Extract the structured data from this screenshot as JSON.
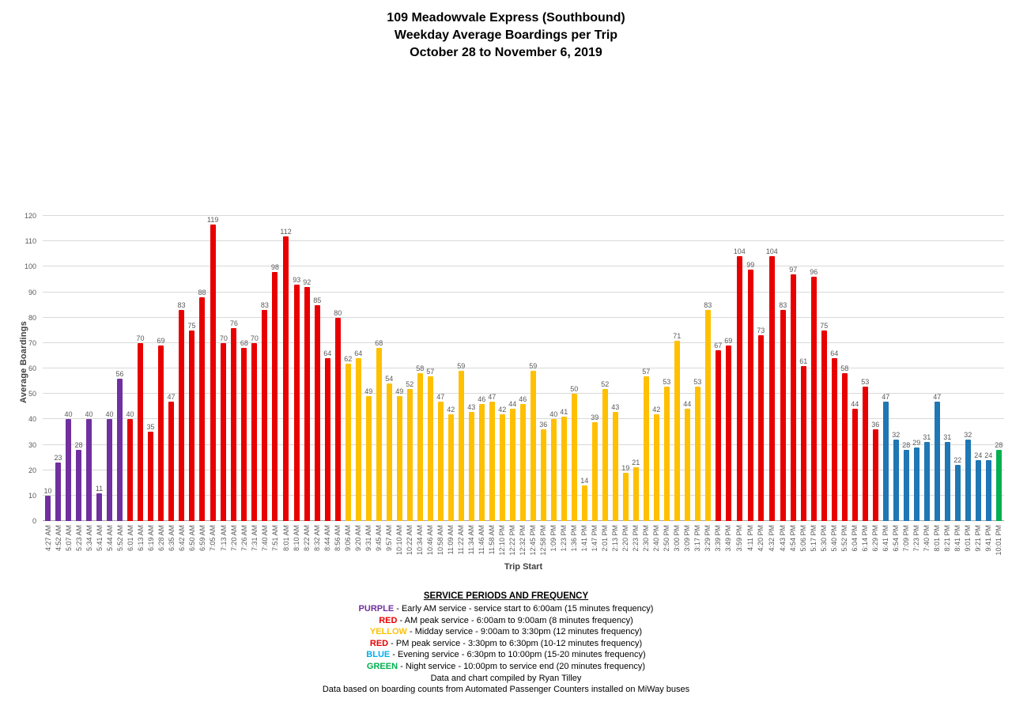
{
  "title": {
    "line1": "109 Meadowvale Express (Southbound)",
    "line2": "Weekday Average Boardings per Trip",
    "line3": "October 28 to November 6, 2019"
  },
  "chart_data": {
    "type": "bar",
    "title": "109 Meadowvale Express (Southbound) — Weekday Average Boardings per Trip — October 28 to November 6, 2019",
    "xlabel": "Trip Start",
    "ylabel": "Average Boardings",
    "ylim": [
      0,
      120
    ],
    "ytick_step": 10,
    "grid": true,
    "legend_position": "below-chart-text",
    "colors": {
      "purple": "#7030A0",
      "red": "#E80000",
      "yellow": "#FFC000",
      "blue": "#1F77B4",
      "green": "#00B050"
    },
    "points": [
      {
        "time": "4:27 AM",
        "value": 10,
        "period": "purple"
      },
      {
        "time": "4:52 AM",
        "value": 23,
        "period": "purple"
      },
      {
        "time": "5:07 AM",
        "value": 40,
        "period": "purple"
      },
      {
        "time": "5:23 AM",
        "value": 28,
        "period": "purple"
      },
      {
        "time": "5:34 AM",
        "value": 40,
        "period": "purple"
      },
      {
        "time": "5:41 AM",
        "value": 11,
        "period": "purple"
      },
      {
        "time": "5:44 AM",
        "value": 40,
        "period": "purple"
      },
      {
        "time": "5:52 AM",
        "value": 56,
        "period": "purple"
      },
      {
        "time": "6:01 AM",
        "value": 40,
        "period": "red"
      },
      {
        "time": "6:13 AM",
        "value": 70,
        "period": "red"
      },
      {
        "time": "6:19 AM",
        "value": 35,
        "period": "red"
      },
      {
        "time": "6:28 AM",
        "value": 69,
        "period": "red"
      },
      {
        "time": "6:35 AM",
        "value": 47,
        "period": "red"
      },
      {
        "time": "6:42 AM",
        "value": 83,
        "period": "red"
      },
      {
        "time": "6:50 AM",
        "value": 75,
        "period": "red"
      },
      {
        "time": "6:59 AM",
        "value": 88,
        "period": "red"
      },
      {
        "time": "7:05 AM",
        "value": 119,
        "period": "red"
      },
      {
        "time": "7:13 AM",
        "value": 70,
        "period": "red"
      },
      {
        "time": "7:20 AM",
        "value": 76,
        "period": "red"
      },
      {
        "time": "7:26 AM",
        "value": 68,
        "period": "red"
      },
      {
        "time": "7:31 AM",
        "value": 70,
        "period": "red"
      },
      {
        "time": "7:40 AM",
        "value": 83,
        "period": "red"
      },
      {
        "time": "7:51 AM",
        "value": 98,
        "period": "red"
      },
      {
        "time": "8:01 AM",
        "value": 112,
        "period": "red"
      },
      {
        "time": "8:10 AM",
        "value": 93,
        "period": "red"
      },
      {
        "time": "8:22 AM",
        "value": 92,
        "period": "red"
      },
      {
        "time": "8:32 AM",
        "value": 85,
        "period": "red"
      },
      {
        "time": "8:44 AM",
        "value": 64,
        "period": "red"
      },
      {
        "time": "8:56 AM",
        "value": 80,
        "period": "red"
      },
      {
        "time": "9:06 AM",
        "value": 62,
        "period": "yellow"
      },
      {
        "time": "9:20 AM",
        "value": 64,
        "period": "yellow"
      },
      {
        "time": "9:31 AM",
        "value": 49,
        "period": "yellow"
      },
      {
        "time": "9:45 AM",
        "value": 68,
        "period": "yellow"
      },
      {
        "time": "9:57 AM",
        "value": 54,
        "period": "yellow"
      },
      {
        "time": "10:10 AM",
        "value": 49,
        "period": "yellow"
      },
      {
        "time": "10:22 AM",
        "value": 52,
        "period": "yellow"
      },
      {
        "time": "10:34 AM",
        "value": 58,
        "period": "yellow"
      },
      {
        "time": "10:46 AM",
        "value": 57,
        "period": "yellow"
      },
      {
        "time": "10:58 AM",
        "value": 47,
        "period": "yellow"
      },
      {
        "time": "11:09 AM",
        "value": 42,
        "period": "yellow"
      },
      {
        "time": "11:22 AM",
        "value": 59,
        "period": "yellow"
      },
      {
        "time": "11:34 AM",
        "value": 43,
        "period": "yellow"
      },
      {
        "time": "11:46 AM",
        "value": 46,
        "period": "yellow"
      },
      {
        "time": "11:58 AM",
        "value": 47,
        "period": "yellow"
      },
      {
        "time": "12:10 PM",
        "value": 42,
        "period": "yellow"
      },
      {
        "time": "12:22 PM",
        "value": 44,
        "period": "yellow"
      },
      {
        "time": "12:32 PM",
        "value": 46,
        "period": "yellow"
      },
      {
        "time": "12:45 PM",
        "value": 59,
        "period": "yellow"
      },
      {
        "time": "12:58 PM",
        "value": 36,
        "period": "yellow"
      },
      {
        "time": "1:09 PM",
        "value": 40,
        "period": "yellow"
      },
      {
        "time": "1:23 PM",
        "value": 41,
        "period": "yellow"
      },
      {
        "time": "1:36 PM",
        "value": 50,
        "period": "yellow"
      },
      {
        "time": "1:41 PM",
        "value": 14,
        "period": "yellow"
      },
      {
        "time": "1:47 PM",
        "value": 39,
        "period": "yellow"
      },
      {
        "time": "2:01 PM",
        "value": 52,
        "period": "yellow"
      },
      {
        "time": "2:13 PM",
        "value": 43,
        "period": "yellow"
      },
      {
        "time": "2:20 PM",
        "value": 19,
        "period": "yellow"
      },
      {
        "time": "2:23 PM",
        "value": 21,
        "period": "yellow"
      },
      {
        "time": "2:30 PM",
        "value": 57,
        "period": "yellow"
      },
      {
        "time": "2:40 PM",
        "value": 42,
        "period": "yellow"
      },
      {
        "time": "2:50 PM",
        "value": 53,
        "period": "yellow"
      },
      {
        "time": "3:00 PM",
        "value": 71,
        "period": "yellow"
      },
      {
        "time": "3:09 PM",
        "value": 44,
        "period": "yellow"
      },
      {
        "time": "3:17 PM",
        "value": 53,
        "period": "yellow"
      },
      {
        "time": "3:29 PM",
        "value": 83,
        "period": "yellow"
      },
      {
        "time": "3:39 PM",
        "value": 67,
        "period": "red"
      },
      {
        "time": "3:49 PM",
        "value": 69,
        "period": "red"
      },
      {
        "time": "3:59 PM",
        "value": 104,
        "period": "red"
      },
      {
        "time": "4:11 PM",
        "value": 99,
        "period": "red"
      },
      {
        "time": "4:20 PM",
        "value": 73,
        "period": "red"
      },
      {
        "time": "4:32 PM",
        "value": 104,
        "period": "red"
      },
      {
        "time": "4:43 PM",
        "value": 83,
        "period": "red"
      },
      {
        "time": "4:54 PM",
        "value": 97,
        "period": "red"
      },
      {
        "time": "5:06 PM",
        "value": 61,
        "period": "red"
      },
      {
        "time": "5:17 PM",
        "value": 96,
        "period": "red"
      },
      {
        "time": "5:30 PM",
        "value": 75,
        "period": "red"
      },
      {
        "time": "5:40 PM",
        "value": 64,
        "period": "red"
      },
      {
        "time": "5:52 PM",
        "value": 58,
        "period": "red"
      },
      {
        "time": "6:04 PM",
        "value": 44,
        "period": "red"
      },
      {
        "time": "6:14 PM",
        "value": 53,
        "period": "red"
      },
      {
        "time": "6:29 PM",
        "value": 36,
        "period": "red"
      },
      {
        "time": "6:41 PM",
        "value": 47,
        "period": "blue"
      },
      {
        "time": "6:54 PM",
        "value": 32,
        "period": "blue"
      },
      {
        "time": "7:09 PM",
        "value": 28,
        "period": "blue"
      },
      {
        "time": "7:23 PM",
        "value": 29,
        "period": "blue"
      },
      {
        "time": "7:40 PM",
        "value": 31,
        "period": "blue"
      },
      {
        "time": "8:01 PM",
        "value": 47,
        "period": "blue"
      },
      {
        "time": "8:21 PM",
        "value": 31,
        "period": "blue"
      },
      {
        "time": "8:41 PM",
        "value": 22,
        "period": "blue"
      },
      {
        "time": "9:01 PM",
        "value": 32,
        "period": "blue"
      },
      {
        "time": "9:21 PM",
        "value": 24,
        "period": "blue"
      },
      {
        "time": "9:41 PM",
        "value": 24,
        "period": "blue"
      },
      {
        "time": "10:01 PM",
        "value": 28,
        "period": "green"
      }
    ]
  },
  "footer": {
    "heading": "SERVICE PERIODS AND FREQUENCY",
    "word_colors": {
      "PURPLE": "#7030A0",
      "RED": "#E80000",
      "YELLOW": "#FFC000",
      "BLUE": "#00B0F0",
      "GREEN": "#00B050"
    },
    "lines": [
      [
        {
          "t": "PURPLE",
          "c": "PURPLE"
        },
        {
          "t": " - Early AM service - service start to 6:00am  (15 minutes  frequency)"
        }
      ],
      [
        {
          "t": "RED",
          "c": "RED"
        },
        {
          "t": " - AM peak service - 6:00am to 9:00am  (8 minutes  frequency)"
        }
      ],
      [
        {
          "t": "YELLOW",
          "c": "YELLOW"
        },
        {
          "t": " - Midday service - 9:00am to 3:30pm  (12 minutes  frequency)"
        }
      ],
      [
        {
          "t": "RED",
          "c": "RED"
        },
        {
          "t": " - PM peak service - 3:30pm  to 6:30pm  (10-12 minutes  frequency)"
        }
      ],
      [
        {
          "t": "BLUE",
          "c": "BLUE"
        },
        {
          "t": " - Evening service - 6:30pm  to 10:00pm  (15-20 minutes  frequency)"
        }
      ],
      [
        {
          "t": "GREEN",
          "c": "GREEN"
        },
        {
          "t": " - Night service - 10:00pm  to service end (20 minutes  frequency)"
        }
      ],
      [
        {
          "t": "Data and chart compiled by Ryan Tilley"
        }
      ],
      [
        {
          "t": "Data based on boarding counts from Automated  Passenger  Counters installed on MiWay buses"
        }
      ]
    ]
  }
}
